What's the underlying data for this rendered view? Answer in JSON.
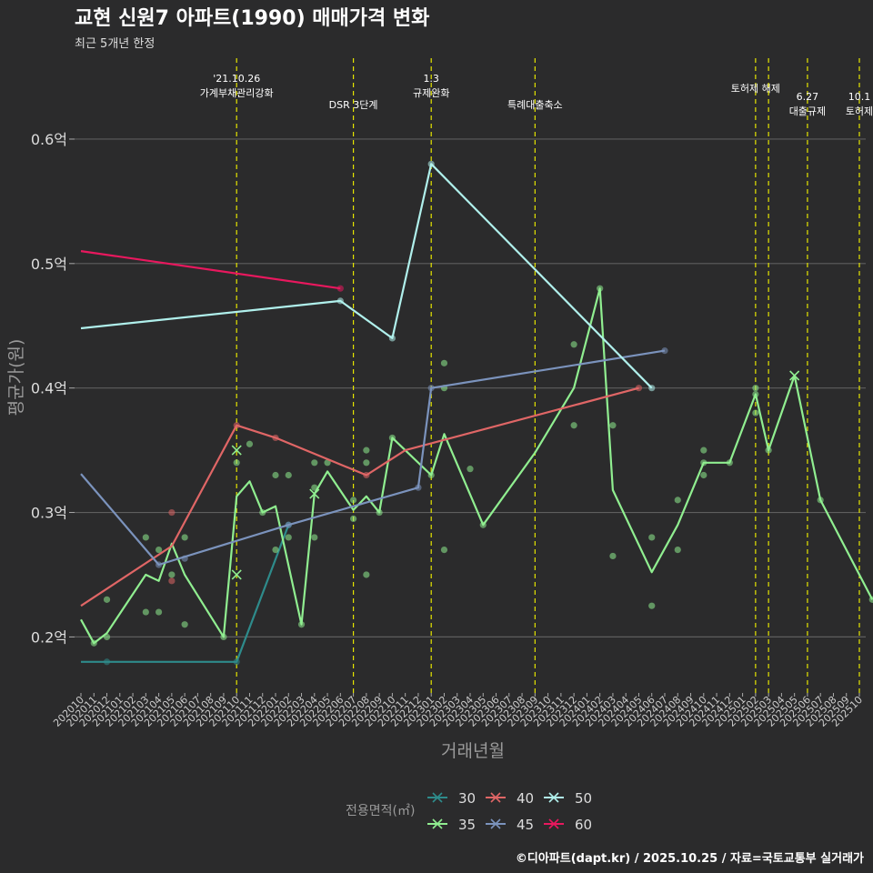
{
  "chart_data": {
    "type": "line",
    "title": "교현 신원7 아파트(1990) 매매가격 변화",
    "subtitle": "최근 5개년 한정",
    "xlabel": "거래년월",
    "ylabel": "평균가(원)",
    "ylim": [
      0.155,
      0.665
    ],
    "yticks": [
      0.2,
      0.3,
      0.4,
      0.5,
      0.6
    ],
    "ytick_labels": [
      "0.2억",
      "0.3억",
      "0.4억",
      "0.5억",
      "0.6억"
    ],
    "categories": [
      "202010",
      "202011",
      "202012",
      "202101",
      "202102",
      "202103",
      "202104",
      "202105",
      "202106",
      "202107",
      "202108",
      "202109",
      "202110",
      "202111",
      "202112",
      "202201",
      "202202",
      "202203",
      "202204",
      "202205",
      "202206",
      "202207",
      "202208",
      "202209",
      "202210",
      "202211",
      "202212",
      "202301",
      "202302",
      "202303",
      "202304",
      "202305",
      "202306",
      "202307",
      "202308",
      "202309",
      "202310",
      "202311",
      "202312",
      "202401",
      "202402",
      "202403",
      "202404",
      "202405",
      "202406",
      "202407",
      "202408",
      "202409",
      "202410",
      "202411",
      "202412",
      "202501",
      "202502",
      "202503",
      "202504",
      "202505",
      "202506",
      "202507",
      "202508",
      "202509",
      "202510"
    ],
    "legend_title": "전용면적(㎡)",
    "annotations": [
      {
        "x": 12,
        "lines": [
          "'21.10.26",
          "가계부채관리강화"
        ],
        "row": 0
      },
      {
        "x": 21,
        "lines": [
          "DSR 3단계"
        ],
        "row": 2
      },
      {
        "x": 27,
        "lines": [
          "1.3",
          "규제완화"
        ],
        "row": 0
      },
      {
        "x": 35,
        "lines": [
          "특례대출축소"
        ],
        "row": 2
      },
      {
        "x": 52,
        "lines": [
          "토허제 해제"
        ],
        "row": 1
      },
      {
        "x": 53,
        "lines": [],
        "row": 1
      },
      {
        "x": 56,
        "lines": [
          "6.27",
          "대출규제"
        ],
        "row": 2
      },
      {
        "x": 60,
        "lines": [
          "10.1",
          "토허제"
        ],
        "row": 2
      }
    ],
    "series": [
      {
        "name": "30",
        "color": "#2e8b8b",
        "line": [
          [
            0,
            0.18
          ],
          [
            12,
            0.18
          ],
          [
            16,
            0.29
          ]
        ],
        "points": [
          [
            2,
            0.18
          ],
          [
            12,
            0.18
          ],
          [
            16,
            0.29
          ]
        ],
        "crosses": []
      },
      {
        "name": "35",
        "color": "#90ee90",
        "line": [
          [
            0,
            0.214
          ],
          [
            1,
            0.195
          ],
          [
            2,
            0.203
          ],
          [
            5,
            0.25
          ],
          [
            6,
            0.245
          ],
          [
            7,
            0.275
          ],
          [
            8,
            0.25
          ],
          [
            11,
            0.2
          ],
          [
            12,
            0.313
          ],
          [
            13,
            0.325
          ],
          [
            14,
            0.3
          ],
          [
            15,
            0.305
          ],
          [
            17,
            0.21
          ],
          [
            18,
            0.315
          ],
          [
            19,
            0.333
          ],
          [
            21,
            0.302
          ],
          [
            22,
            0.313
          ],
          [
            23,
            0.3
          ],
          [
            24,
            0.36
          ],
          [
            27,
            0.33
          ],
          [
            28,
            0.363
          ],
          [
            31,
            0.29
          ],
          [
            35,
            0.348
          ],
          [
            38,
            0.4
          ],
          [
            40,
            0.48
          ],
          [
            41,
            0.318
          ],
          [
            44,
            0.252
          ],
          [
            46,
            0.29
          ],
          [
            48,
            0.34
          ],
          [
            50,
            0.34
          ],
          [
            52,
            0.395
          ],
          [
            53,
            0.35
          ],
          [
            55,
            0.41
          ],
          [
            57,
            0.31
          ],
          [
            61,
            0.23
          ]
        ],
        "points": [
          [
            1,
            0.195
          ],
          [
            2,
            0.2
          ],
          [
            2,
            0.23
          ],
          [
            5,
            0.22
          ],
          [
            5,
            0.28
          ],
          [
            6,
            0.22
          ],
          [
            6,
            0.27
          ],
          [
            7,
            0.25
          ],
          [
            8,
            0.21
          ],
          [
            8,
            0.28
          ],
          [
            11,
            0.2
          ],
          [
            12,
            0.34
          ],
          [
            13,
            0.355
          ],
          [
            14,
            0.3
          ],
          [
            15,
            0.27
          ],
          [
            15,
            0.33
          ],
          [
            16,
            0.28
          ],
          [
            16,
            0.33
          ],
          [
            17,
            0.21
          ],
          [
            18,
            0.28
          ],
          [
            18,
            0.32
          ],
          [
            18,
            0.34
          ],
          [
            19,
            0.34
          ],
          [
            21,
            0.31
          ],
          [
            21,
            0.295
          ],
          [
            22,
            0.25
          ],
          [
            22,
            0.34
          ],
          [
            22,
            0.35
          ],
          [
            23,
            0.3
          ],
          [
            24,
            0.36
          ],
          [
            27,
            0.33
          ],
          [
            28,
            0.42
          ],
          [
            28,
            0.4
          ],
          [
            28,
            0.27
          ],
          [
            30,
            0.335
          ],
          [
            31,
            0.29
          ],
          [
            38,
            0.435
          ],
          [
            38,
            0.37
          ],
          [
            40,
            0.48
          ],
          [
            41,
            0.37
          ],
          [
            41,
            0.265
          ],
          [
            44,
            0.225
          ],
          [
            44,
            0.28
          ],
          [
            46,
            0.31
          ],
          [
            46,
            0.27
          ],
          [
            48,
            0.35
          ],
          [
            48,
            0.34
          ],
          [
            48,
            0.33
          ],
          [
            50,
            0.34
          ],
          [
            52,
            0.4
          ],
          [
            52,
            0.395
          ],
          [
            52,
            0.38
          ],
          [
            53,
            0.35
          ],
          [
            57,
            0.31
          ],
          [
            61,
            0.23
          ]
        ],
        "crosses": [
          [
            12,
            0.35
          ],
          [
            12,
            0.25
          ],
          [
            18,
            0.315
          ],
          [
            55,
            0.41
          ]
        ]
      },
      {
        "name": "40",
        "color": "#e06666",
        "line": [
          [
            0,
            0.225
          ],
          [
            7,
            0.273
          ],
          [
            12,
            0.37
          ],
          [
            15,
            0.36
          ],
          [
            22,
            0.33
          ],
          [
            25,
            0.35
          ],
          [
            43,
            0.4
          ]
        ],
        "points": [
          [
            7,
            0.3
          ],
          [
            7,
            0.245
          ],
          [
            12,
            0.37
          ],
          [
            15,
            0.36
          ],
          [
            22,
            0.33
          ],
          [
            43,
            0.4
          ]
        ],
        "crosses": []
      },
      {
        "name": "45",
        "color": "#7b93bd",
        "line": [
          [
            0,
            0.331
          ],
          [
            6,
            0.258
          ],
          [
            16,
            0.29
          ],
          [
            26,
            0.32
          ],
          [
            27,
            0.4
          ],
          [
            45,
            0.43
          ]
        ],
        "points": [
          [
            6,
            0.258
          ],
          [
            8,
            0.263
          ],
          [
            16,
            0.29
          ],
          [
            26,
            0.32
          ],
          [
            27,
            0.4
          ],
          [
            45,
            0.43
          ]
        ],
        "crosses": []
      },
      {
        "name": "50",
        "color": "#b0f0ec",
        "line": [
          [
            0,
            0.448
          ],
          [
            20,
            0.47
          ],
          [
            24,
            0.44
          ],
          [
            27,
            0.58
          ],
          [
            44,
            0.4
          ]
        ],
        "points": [
          [
            20,
            0.47
          ],
          [
            24,
            0.44
          ],
          [
            27,
            0.58
          ],
          [
            44,
            0.4
          ]
        ],
        "crosses": []
      },
      {
        "name": "60",
        "color": "#e8185e",
        "line": [
          [
            0,
            0.51
          ],
          [
            20,
            0.48
          ]
        ],
        "points": [
          [
            20,
            0.48
          ]
        ],
        "crosses": []
      }
    ],
    "legend_order": [
      "30",
      "40",
      "50",
      "35",
      "45",
      "60"
    ],
    "grid": true
  },
  "footer": {
    "credit": "©디아파트(dapt.kr) / 2025.10.25 / 자료=국토교통부 실거래가"
  }
}
